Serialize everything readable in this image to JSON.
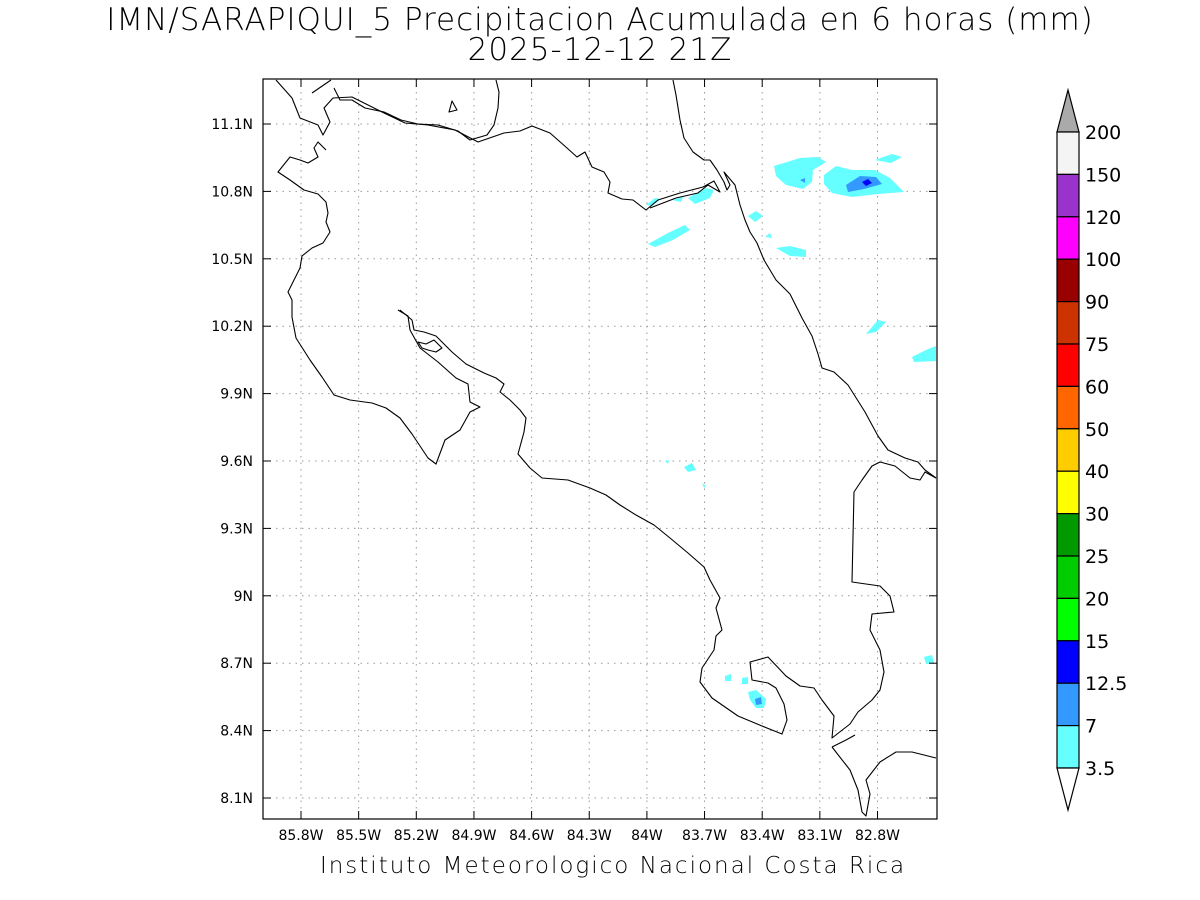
{
  "title_line1": "IMN/SARAPIQUI_5 Precipitacion Acumulada en 6 horas (mm)",
  "title_line2": "2025-12-12 21Z",
  "footer": "Instituto Meteorologico Nacional Costa Rica",
  "map": {
    "lon_ticks": [
      "85.8W",
      "85.5W",
      "85.2W",
      "84.9W",
      "84.6W",
      "84.3W",
      "84W",
      "83.7W",
      "83.4W",
      "83.1W",
      "82.8W"
    ],
    "lat_ticks": [
      "11.1N",
      "10.8N",
      "10.5N",
      "10.2N",
      "9.9N",
      "9.6N",
      "9.3N",
      "9N",
      "8.7N",
      "8.4N",
      "8.1N"
    ]
  },
  "colorbar": {
    "levels": [
      "3.5",
      "7",
      "12.5",
      "15",
      "20",
      "25",
      "30",
      "40",
      "50",
      "60",
      "75",
      "90",
      "100",
      "120",
      "150",
      "200"
    ],
    "colors": [
      "#66ffff",
      "#3399ff",
      "#0000ff",
      "#00ff00",
      "#00cc00",
      "#009900",
      "#ffff00",
      "#ffcc00",
      "#ff6600",
      "#ff0000",
      "#cc3300",
      "#990000",
      "#ff00ff",
      "#9933cc",
      "#f4f4f4",
      "#aaaaaa"
    ]
  }
}
